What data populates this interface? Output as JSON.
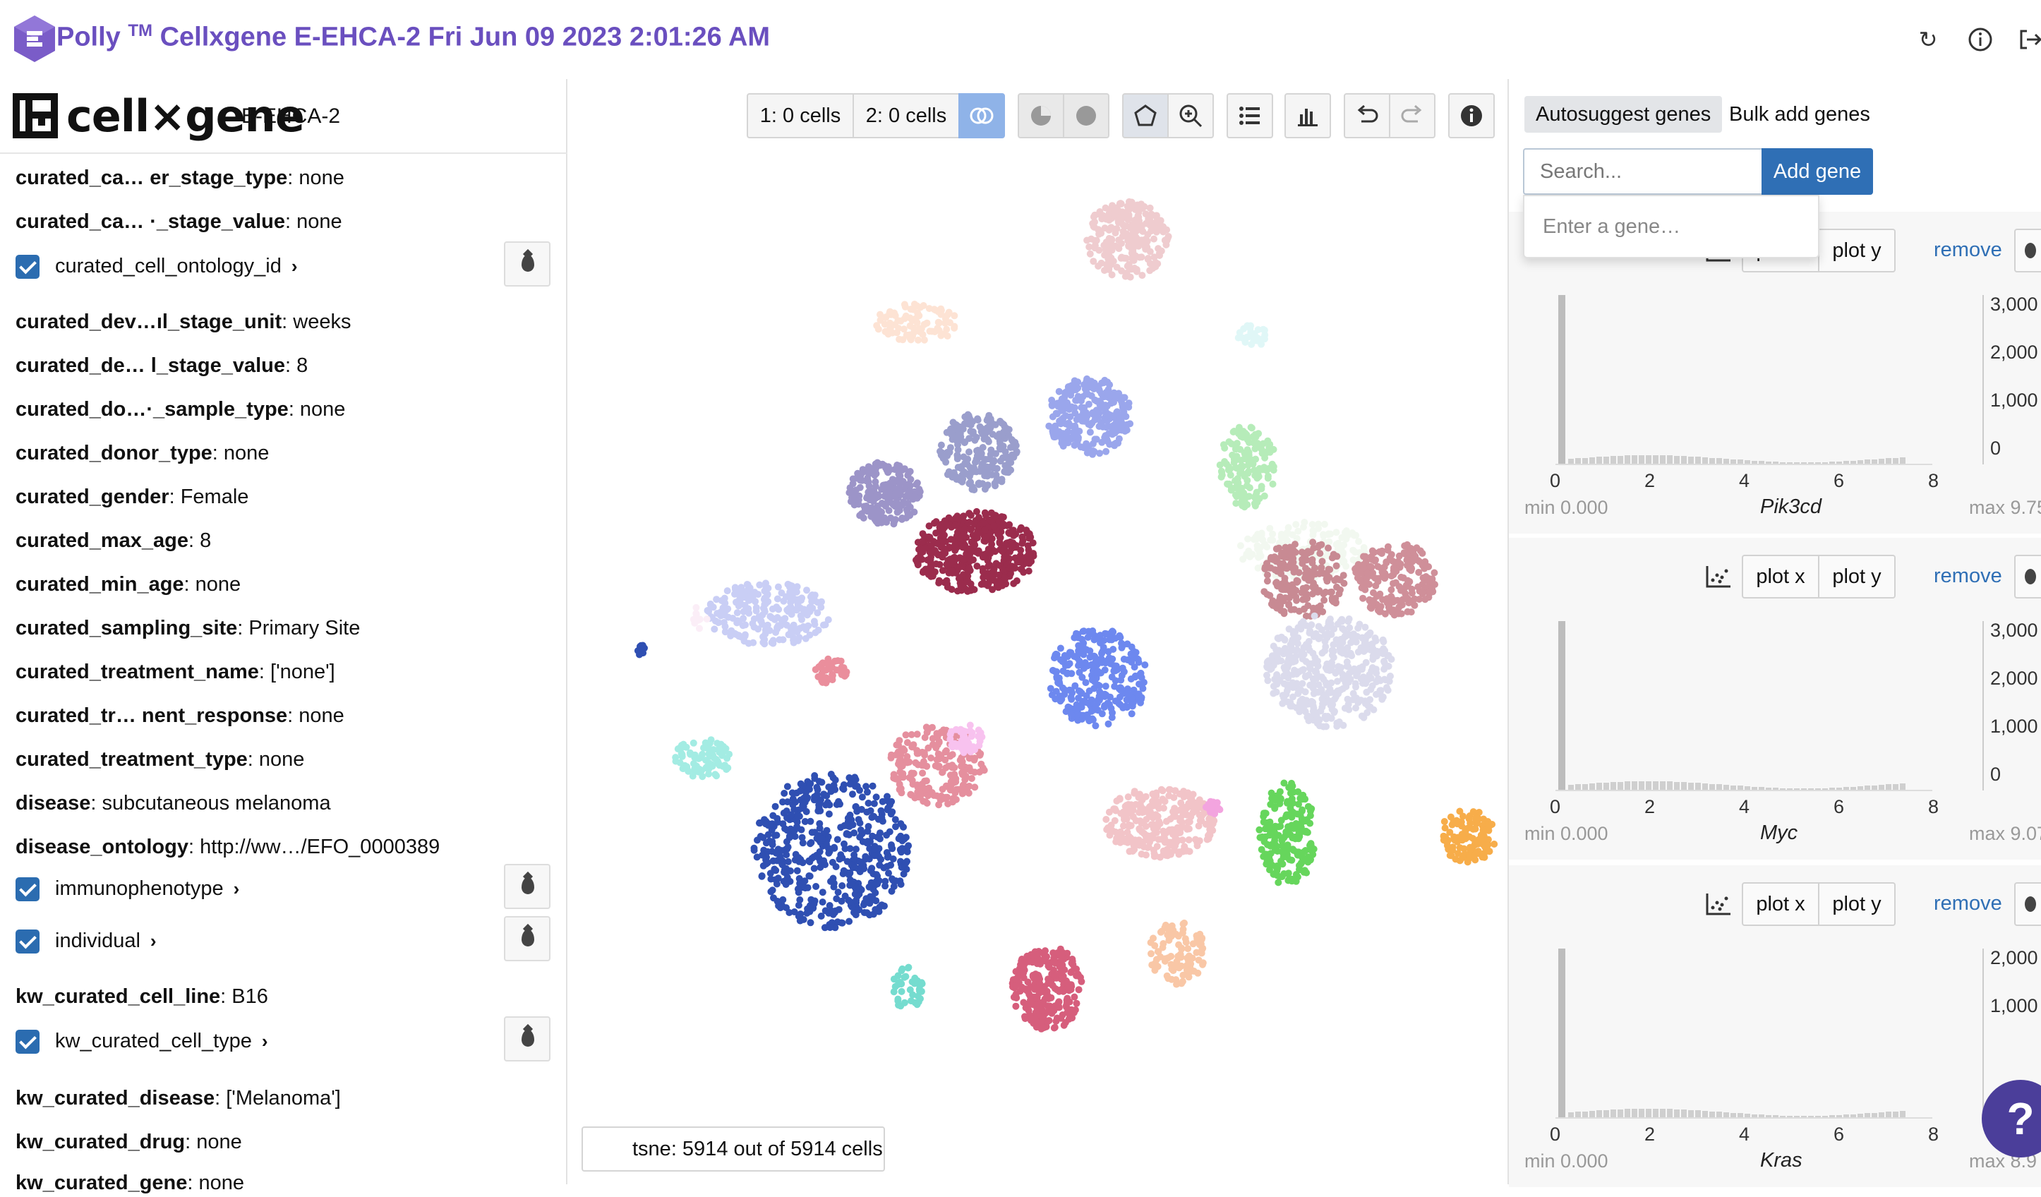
{
  "topbar": {
    "brand": "Polly",
    "tm": "TM",
    "title": "Cellxgene E-EHCA-2 Fri Jun 09 2023 2:01:26 AM",
    "icons": [
      "refresh-icon",
      "info-icon",
      "logout-icon"
    ]
  },
  "left": {
    "logo_text": "cell×gene",
    "dataset": "E-EHCA-2",
    "rows": [
      {
        "type": "meta",
        "key": "curated_ca… er_stage_type",
        "value": ": none"
      },
      {
        "type": "meta",
        "key": "curated_ca… ·_stage_value",
        "value": ": none"
      },
      {
        "type": "cat",
        "label": "curated_cell_ontology_id"
      },
      {
        "type": "meta",
        "key": "curated_dev…ıl_stage_unit",
        "value": ": weeks"
      },
      {
        "type": "meta",
        "key": "curated_de… l_stage_value",
        "value": ":  8"
      },
      {
        "type": "meta",
        "key": "curated_do…·_sample_type",
        "value": ": none"
      },
      {
        "type": "meta",
        "key": "curated_donor_type",
        "value": ": none"
      },
      {
        "type": "meta",
        "key": "curated_gender",
        "value": ": Female"
      },
      {
        "type": "meta",
        "key": "curated_max_age",
        "value": ":  8"
      },
      {
        "type": "meta",
        "key": "curated_min_age",
        "value": ": none"
      },
      {
        "type": "meta",
        "key": "curated_sampling_site",
        "value": ": Primary Site"
      },
      {
        "type": "meta",
        "key": "curated_treatment_name",
        "value": ": ['none']"
      },
      {
        "type": "meta",
        "key": "curated_tr… nent_response",
        "value": ": none"
      },
      {
        "type": "meta",
        "key": "curated_treatment_type",
        "value": ": none"
      },
      {
        "type": "meta",
        "key": "disease",
        "value": ": subcutaneous melanoma"
      },
      {
        "type": "meta",
        "key": "disease_ontology",
        "value": ": http://ww…/EFO_0000389"
      },
      {
        "type": "cat",
        "label": "immunophenotype"
      },
      {
        "type": "cat",
        "label": "individual"
      },
      {
        "type": "meta",
        "key": "kw_curated_cell_line",
        "value": ": B16"
      },
      {
        "type": "cat",
        "label": "kw_curated_cell_type"
      },
      {
        "type": "meta",
        "key": "kw_curated_disease",
        "value": ": ['Melanoma']"
      },
      {
        "type": "meta",
        "key": "kw_curated_drug",
        "value": ": none"
      },
      {
        "type": "meta",
        "key": "kw_curated_gene",
        "value": ": none"
      }
    ]
  },
  "toolbar": {
    "set1": "1: 0 cells",
    "set2": "2: 0 cells",
    "icons": [
      "venn-icon",
      "pie-icon",
      "circle-icon",
      "lasso-icon",
      "zoom-icon",
      "list-icon",
      "bar-chart-icon",
      "undo-icon",
      "redo-icon",
      "info-icon"
    ]
  },
  "embedding": {
    "label": "tsne: 5914 out of 5914 cells"
  },
  "right": {
    "tab_autosuggest": "Autosuggest genes",
    "tab_bulk": "Bulk add genes",
    "search_placeholder": "Search...",
    "add_gene": "Add gene",
    "dropdown_hint": "Enter a gene…",
    "genes": [
      {
        "name": "Pik3cd",
        "min": "min 0.000",
        "max": "max 9.75",
        "plot_x": "plot x",
        "plot_y": "plot y",
        "remove": "remove",
        "y_ticks": [
          "3,000",
          "2,000",
          "1,000",
          "0"
        ],
        "x_ticks": [
          "0",
          "2",
          "4",
          "6",
          "8"
        ]
      },
      {
        "name": "Myc",
        "min": "min 0.000",
        "max": "max 9.07",
        "plot_x": "plot x",
        "plot_y": "plot y",
        "remove": "remove",
        "y_ticks": [
          "3,000",
          "2,000",
          "1,000",
          "0"
        ],
        "x_ticks": [
          "0",
          "2",
          "4",
          "6",
          "8"
        ]
      },
      {
        "name": "Kras",
        "min": "min 0.000",
        "max": "max 8.9",
        "plot_x": "plot x",
        "plot_y": "plot y",
        "remove": "remove",
        "y_ticks": [
          "2,000",
          "1,000"
        ],
        "x_ticks": [
          "0",
          "2",
          "4",
          "6",
          "8"
        ]
      }
    ],
    "help": "?"
  },
  "colors": {
    "brand": "#6a4fbf",
    "accent": "#2f6fb5",
    "help_bubble": "#4b3e9a"
  }
}
